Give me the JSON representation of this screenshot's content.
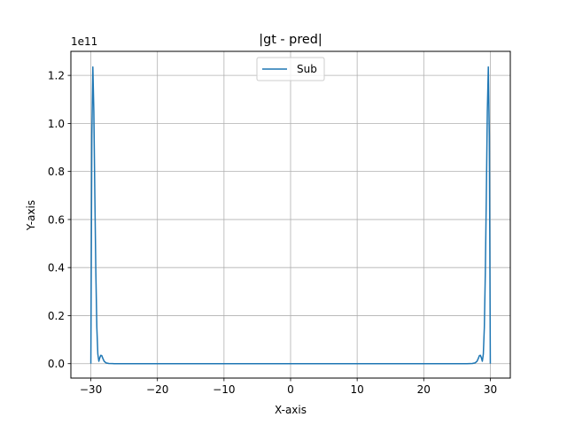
{
  "chart_data": {
    "type": "line",
    "title": "|gt - pred|",
    "xlabel": "X-axis",
    "ylabel": "Y-axis",
    "y_offset_label": "1e11",
    "xlim": [
      -33,
      33
    ],
    "ylim": [
      -0.06,
      1.3
    ],
    "xticks": [
      -30,
      -20,
      -10,
      0,
      10,
      20,
      30
    ],
    "xtick_labels": [
      "−30",
      "−20",
      "−10",
      "0",
      "10",
      "20",
      "30"
    ],
    "yticks": [
      0.0,
      0.2,
      0.4,
      0.6,
      0.8,
      1.0,
      1.2
    ],
    "ytick_labels": [
      "0.0",
      "0.2",
      "0.4",
      "0.6",
      "0.8",
      "1.0",
      "1.2"
    ],
    "grid": true,
    "legend_position": "top-center",
    "series": [
      {
        "name": "Sub",
        "color": "#1f77b4",
        "x": [
          -30,
          -29.85,
          -29.7,
          -29.55,
          -29.4,
          -29.25,
          -29.1,
          -28.95,
          -28.8,
          -28.65,
          -28.5,
          -28.35,
          -28.2,
          -28.0,
          -27.7,
          -27.3,
          -26.5,
          -25.0,
          0,
          25.0,
          26.5,
          27.3,
          27.7,
          28.0,
          28.2,
          28.35,
          28.5,
          28.65,
          28.8,
          28.95,
          29.1,
          29.25,
          29.4,
          29.55,
          29.7,
          29.85,
          30
        ],
        "y": [
          0.0,
          0.95,
          1.235,
          1.05,
          0.7,
          0.38,
          0.15,
          0.04,
          0.01,
          0.025,
          0.035,
          0.033,
          0.022,
          0.01,
          0.003,
          0.001,
          0.0,
          0.0,
          0.0,
          0.0,
          0.0,
          0.001,
          0.003,
          0.01,
          0.022,
          0.033,
          0.035,
          0.025,
          0.01,
          0.04,
          0.15,
          0.38,
          0.7,
          1.05,
          1.235,
          0.95,
          0.0
        ]
      }
    ]
  }
}
